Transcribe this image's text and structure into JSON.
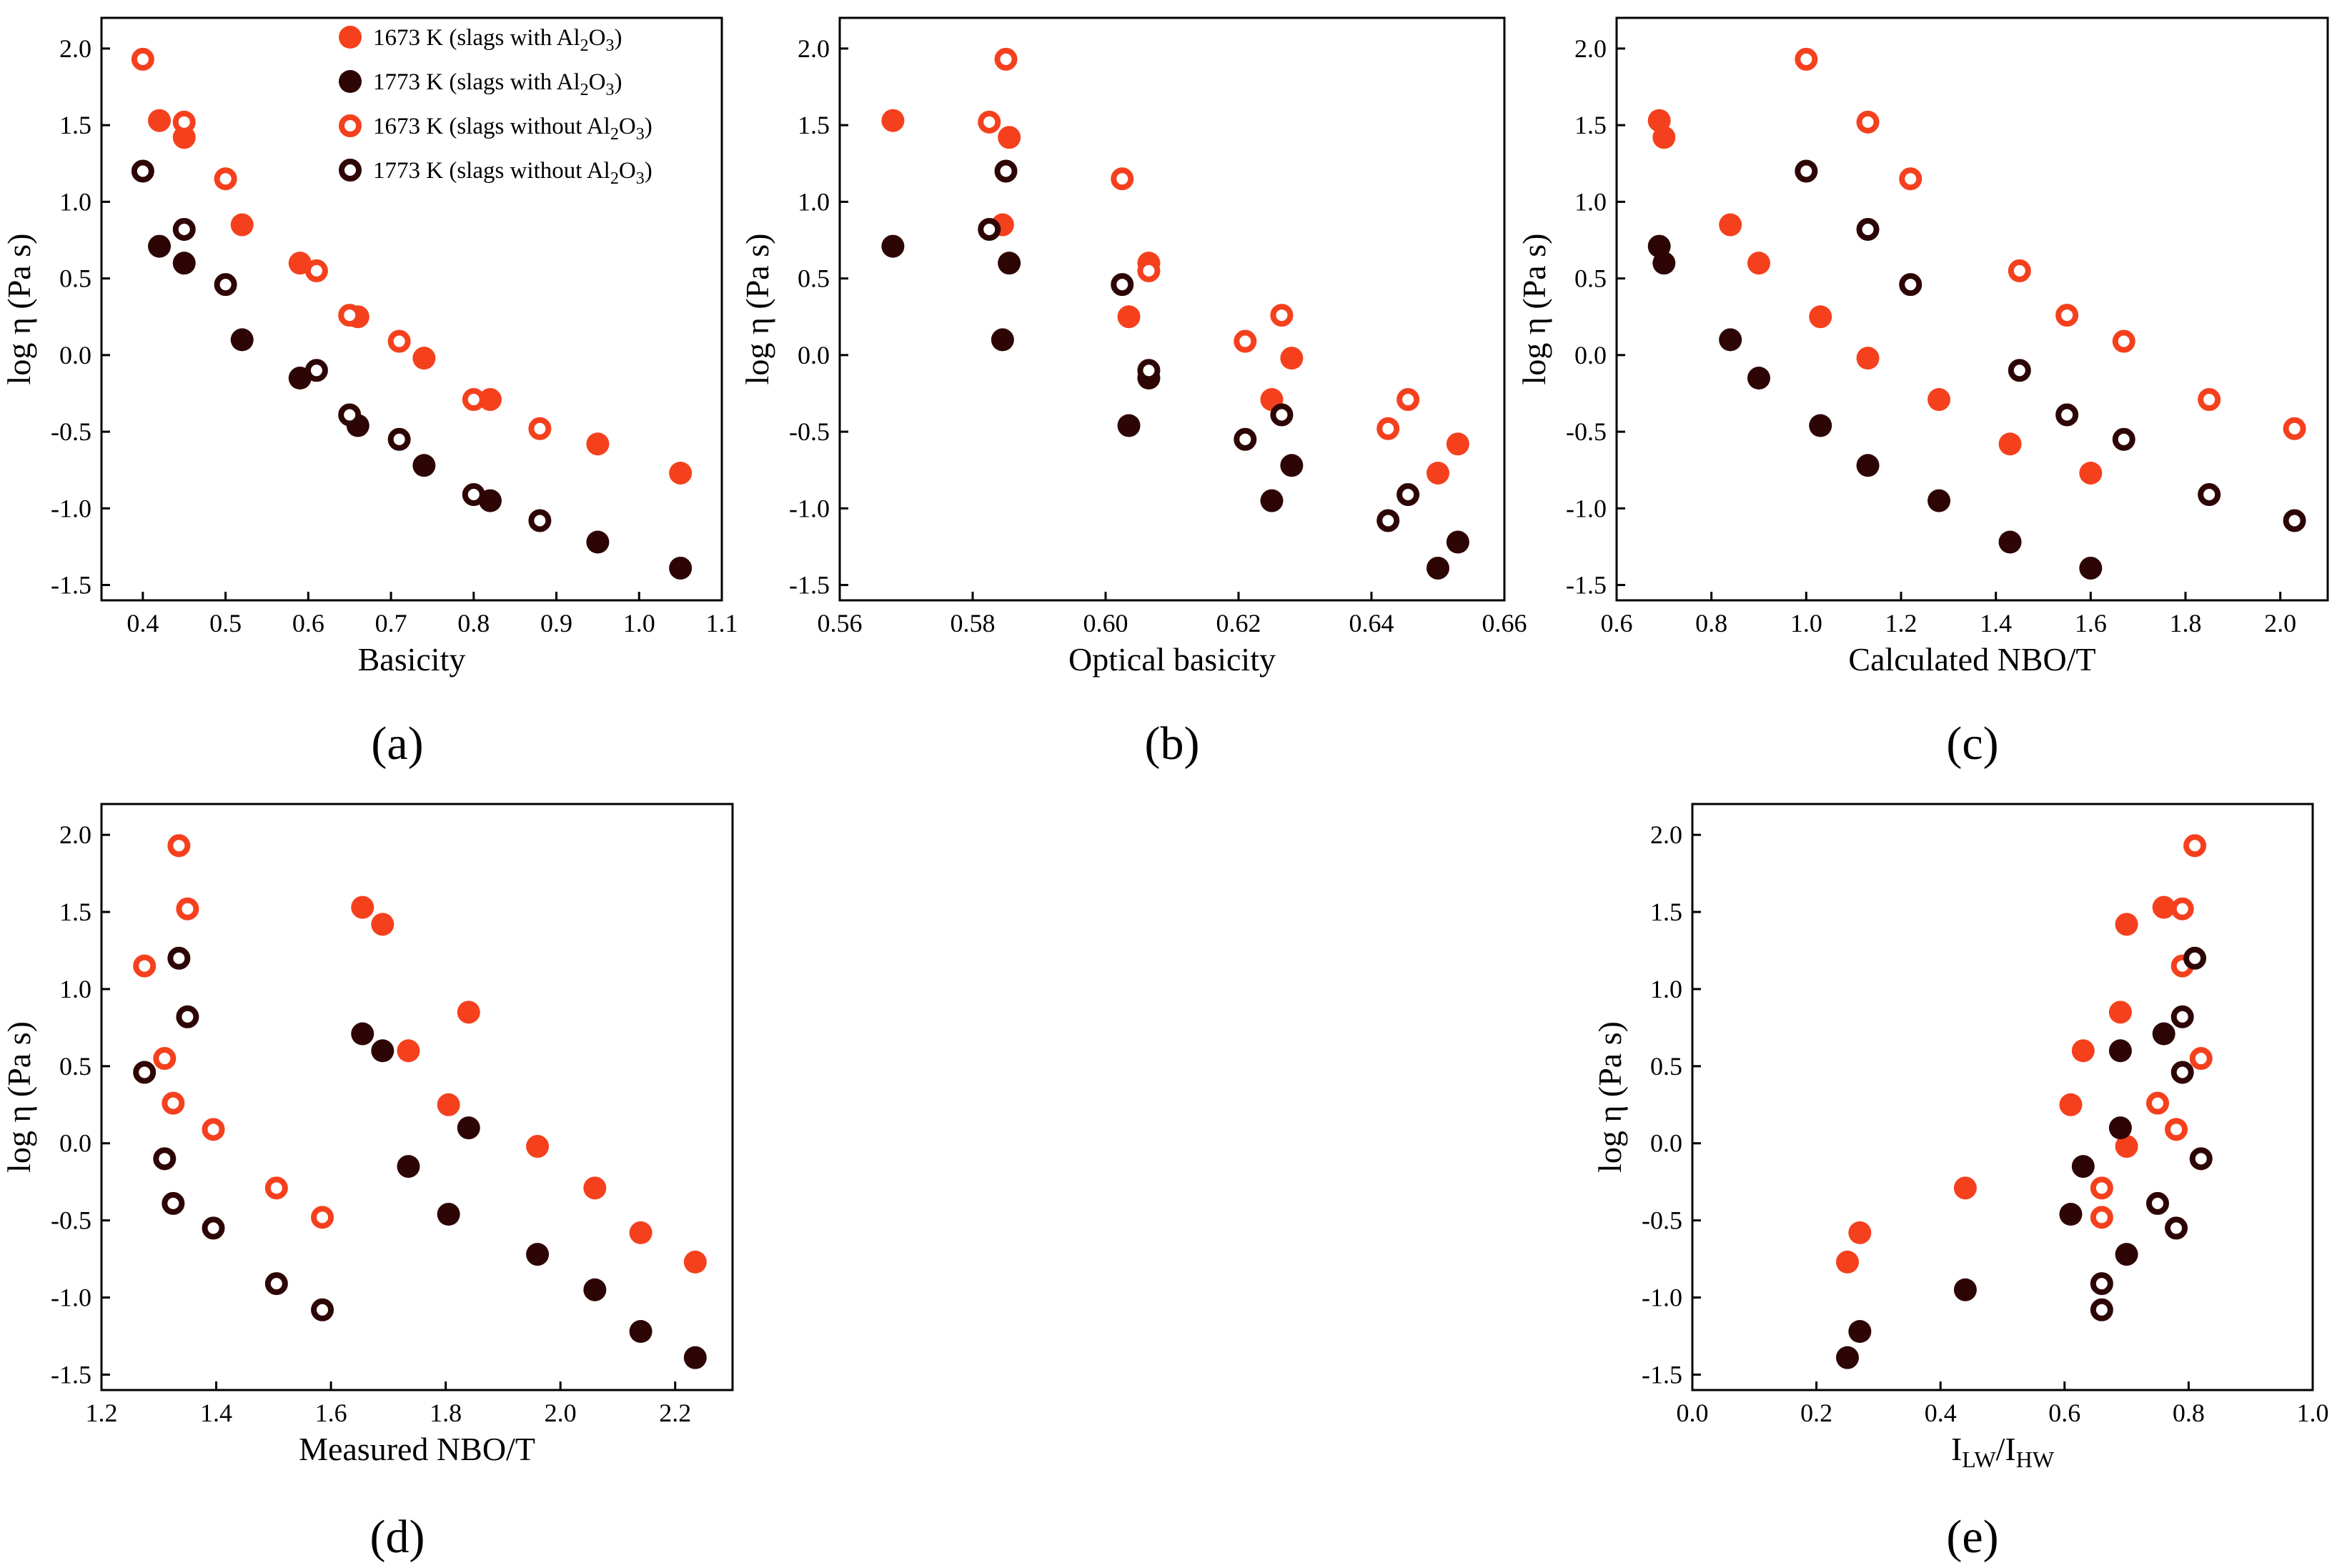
{
  "figure": {
    "legend": [
      {
        "prefix": "1673 K (slags with Al",
        "sub": "2",
        "mid": "O",
        "sub2": "3",
        "suffix": ")",
        "series": "s1673_with",
        "color": "#f5401e",
        "filled": true
      },
      {
        "prefix": "1773 K (slags with Al",
        "sub": "2",
        "mid": "O",
        "sub2": "3",
        "suffix": ")",
        "series": "s1773_with",
        "color": "#2e0505",
        "filled": true
      },
      {
        "prefix": "1673 K (slags without Al",
        "sub": "2",
        "mid": "O",
        "sub2": "3",
        "suffix": ")",
        "series": "s1673_without",
        "color": "#f5401e",
        "filled": false
      },
      {
        "prefix": "1773 K (slags without Al",
        "sub": "2",
        "mid": "O",
        "sub2": "3",
        "suffix": ")",
        "series": "s1773_without",
        "color": "#2e0505",
        "filled": false
      }
    ],
    "colors": {
      "red": "#f5401e",
      "dark": "#2e0505"
    }
  },
  "chart_data": [
    {
      "id": "a",
      "type": "scatter",
      "panel_label": "(a)",
      "xlabel": "Basicity",
      "ylabel": "log η (Pa s)",
      "xlim": [
        0.35,
        1.1
      ],
      "ylim": [
        -1.6,
        2.2
      ],
      "xticks": [
        "0.4",
        "0.5",
        "0.6",
        "0.7",
        "0.8",
        "0.9",
        "1.0",
        "1.1"
      ],
      "yticks": [
        "-1.5",
        "-1.0",
        "-0.5",
        "0.0",
        "0.5",
        "1.0",
        "1.5",
        "2.0"
      ],
      "series": [
        {
          "name": "1673 K (slags with Al2O3)",
          "key": "s1673_with",
          "x": [
            0.42,
            0.45,
            0.52,
            0.59,
            0.66,
            0.74,
            0.82,
            0.95,
            1.05
          ],
          "y": [
            1.53,
            1.42,
            0.85,
            0.6,
            0.25,
            -0.02,
            -0.29,
            -0.58,
            -0.77
          ]
        },
        {
          "name": "1773 K (slags with Al2O3)",
          "key": "s1773_with",
          "x": [
            0.42,
            0.45,
            0.52,
            0.59,
            0.66,
            0.74,
            0.82,
            0.95,
            1.05
          ],
          "y": [
            0.71,
            0.6,
            0.1,
            -0.15,
            -0.46,
            -0.72,
            -0.95,
            -1.22,
            -1.39
          ]
        },
        {
          "name": "1673 K (slags without Al2O3)",
          "key": "s1673_without",
          "x": [
            0.4,
            0.45,
            0.5,
            0.61,
            0.65,
            0.71,
            0.8,
            0.88
          ],
          "y": [
            1.93,
            1.52,
            1.15,
            0.55,
            0.26,
            0.09,
            -0.29,
            -0.48
          ]
        },
        {
          "name": "1773 K (slags without Al2O3)",
          "key": "s1773_without",
          "x": [
            0.4,
            0.45,
            0.5,
            0.61,
            0.65,
            0.71,
            0.8,
            0.88
          ],
          "y": [
            1.2,
            0.82,
            0.46,
            -0.1,
            -0.39,
            -0.55,
            -0.91,
            -1.08
          ]
        }
      ]
    },
    {
      "id": "b",
      "type": "scatter",
      "panel_label": "(b)",
      "xlabel": "Optical basicity",
      "ylabel": "log η (Pa s)",
      "xlim": [
        0.56,
        0.66
      ],
      "ylim": [
        -1.6,
        2.2
      ],
      "xticks": [
        "0.56",
        "0.58",
        "0.60",
        "0.62",
        "0.64",
        "0.66"
      ],
      "yticks": [
        "-1.5",
        "-1.0",
        "-0.5",
        "0.0",
        "0.5",
        "1.0",
        "1.5",
        "2.0"
      ],
      "series": [
        {
          "name": "1673 K (slags with Al2O3)",
          "key": "s1673_with",
          "x": [
            0.568,
            0.5855,
            0.5845,
            0.6065,
            0.6035,
            0.628,
            0.625,
            0.653,
            0.65
          ],
          "y": [
            1.53,
            1.42,
            0.85,
            0.6,
            0.25,
            -0.02,
            -0.29,
            -0.58,
            -0.77
          ]
        },
        {
          "name": "1773 K (slags with Al2O3)",
          "key": "s1773_with",
          "x": [
            0.568,
            0.5855,
            0.5845,
            0.6065,
            0.6035,
            0.628,
            0.625,
            0.653,
            0.65
          ],
          "y": [
            0.71,
            0.6,
            0.1,
            -0.15,
            -0.46,
            -0.72,
            -0.95,
            -1.22,
            -1.39
          ]
        },
        {
          "name": "1673 K (slags without Al2O3)",
          "key": "s1673_without",
          "x": [
            0.585,
            0.5825,
            0.6025,
            0.6065,
            0.6265,
            0.621,
            0.6425,
            0.6455
          ],
          "y": [
            1.93,
            1.52,
            1.15,
            0.55,
            0.26,
            0.09,
            -0.48,
            -0.29
          ]
        },
        {
          "name": "1773 K (slags without Al2O3)",
          "key": "s1773_without",
          "x": [
            0.585,
            0.5825,
            0.6025,
            0.6065,
            0.6265,
            0.621,
            0.6425,
            0.6455
          ],
          "y": [
            1.2,
            0.82,
            0.46,
            -0.1,
            -0.39,
            -0.55,
            -1.08,
            -0.91
          ]
        }
      ]
    },
    {
      "id": "c",
      "type": "scatter",
      "panel_label": "(c)",
      "xlabel": "Calculated NBO/T",
      "ylabel": "log η (Pa s)",
      "xlim": [
        0.6,
        2.1
      ],
      "ylim": [
        -1.6,
        2.2
      ],
      "xticks": [
        "0.6",
        "0.8",
        "1.0",
        "1.2",
        "1.4",
        "1.6",
        "1.8",
        "2.0"
      ],
      "yticks": [
        "-1.5",
        "-1.0",
        "-0.5",
        "0.0",
        "0.5",
        "1.0",
        "1.5",
        "2.0"
      ],
      "series": [
        {
          "name": "1673 K (slags with Al2O3)",
          "key": "s1673_with",
          "x": [
            0.69,
            0.7,
            0.84,
            0.9,
            1.03,
            1.13,
            1.28,
            1.43,
            1.6
          ],
          "y": [
            1.53,
            1.42,
            0.85,
            0.6,
            0.25,
            -0.02,
            -0.29,
            -0.58,
            -0.77
          ]
        },
        {
          "name": "1773 K (slags with Al2O3)",
          "key": "s1773_with",
          "x": [
            0.69,
            0.7,
            0.84,
            0.9,
            1.03,
            1.13,
            1.28,
            1.43,
            1.6
          ],
          "y": [
            0.71,
            0.6,
            0.1,
            -0.15,
            -0.46,
            -0.72,
            -0.95,
            -1.22,
            -1.39
          ]
        },
        {
          "name": "1673 K (slags without Al2O3)",
          "key": "s1673_without",
          "x": [
            1.0,
            1.13,
            1.22,
            1.45,
            1.55,
            1.67,
            1.85,
            2.03
          ],
          "y": [
            1.93,
            1.52,
            1.15,
            0.55,
            0.26,
            0.09,
            -0.29,
            -0.48
          ]
        },
        {
          "name": "1773 K (slags without Al2O3)",
          "key": "s1773_without",
          "x": [
            1.0,
            1.13,
            1.22,
            1.45,
            1.55,
            1.67,
            1.85,
            2.03
          ],
          "y": [
            1.2,
            0.82,
            0.46,
            -0.1,
            -0.39,
            -0.55,
            -0.91,
            -1.08
          ]
        }
      ]
    },
    {
      "id": "d",
      "type": "scatter",
      "panel_label": "(d)",
      "xlabel": "Measured NBO/T",
      "ylabel": "log η (Pa s)",
      "xlim": [
        1.2,
        2.3
      ],
      "ylim": [
        -1.6,
        2.2
      ],
      "xticks": [
        "1.2",
        "1.4",
        "1.6",
        "1.8",
        "2.0",
        "2.2"
      ],
      "yticks": [
        "-1.5",
        "-1.0",
        "-0.5",
        "0.0",
        "0.5",
        "1.0",
        "1.5",
        "2.0"
      ],
      "series": [
        {
          "name": "1673 K (slags with Al2O3)",
          "key": "s1673_with",
          "x": [
            1.655,
            1.69,
            1.84,
            1.735,
            1.805,
            1.96,
            2.06,
            2.14,
            2.235
          ],
          "y": [
            1.53,
            1.42,
            0.85,
            0.6,
            0.25,
            -0.02,
            -0.29,
            -0.58,
            -0.77
          ]
        },
        {
          "name": "1773 K (slags with Al2O3)",
          "key": "s1773_with",
          "x": [
            1.655,
            1.69,
            1.84,
            1.735,
            1.805,
            1.96,
            2.06,
            2.14,
            2.235
          ],
          "y": [
            0.71,
            0.6,
            0.1,
            -0.15,
            -0.46,
            -0.72,
            -0.95,
            -1.22,
            -1.39
          ]
        },
        {
          "name": "1673 K (slags without Al2O3)",
          "key": "s1673_without",
          "x": [
            1.335,
            1.35,
            1.275,
            1.31,
            1.325,
            1.395,
            1.505,
            1.585
          ],
          "y": [
            1.93,
            1.52,
            1.15,
            0.55,
            0.26,
            0.09,
            -0.29,
            -0.48
          ]
        },
        {
          "name": "1773 K (slags without Al2O3)",
          "key": "s1773_without",
          "x": [
            1.335,
            1.35,
            1.275,
            1.31,
            1.325,
            1.395,
            1.505,
            1.585
          ],
          "y": [
            1.2,
            0.82,
            0.46,
            -0.1,
            -0.39,
            -0.55,
            -0.91,
            -1.08
          ]
        }
      ]
    },
    {
      "id": "e",
      "type": "scatter",
      "panel_label": "(e)",
      "xlabel_main": "I",
      "xlabel_sub1": "LW",
      "xlabel_mid": "/I",
      "xlabel_sub2": "HW",
      "ylabel": "log η (Pa s)",
      "xlim": [
        0.0,
        1.0
      ],
      "ylim": [
        -1.6,
        2.2
      ],
      "xticks": [
        "0.0",
        "0.2",
        "0.4",
        "0.6",
        "0.8",
        "1.0"
      ],
      "yticks": [
        "-1.5",
        "-1.0",
        "-0.5",
        "0.0",
        "0.5",
        "1.0",
        "1.5",
        "2.0"
      ],
      "series": [
        {
          "name": "1673 K (slags with Al2O3)",
          "key": "s1673_with",
          "x": [
            0.76,
            0.7,
            0.69,
            0.63,
            0.61,
            0.7,
            0.44,
            0.27,
            0.25
          ],
          "y": [
            1.53,
            1.42,
            0.85,
            0.6,
            0.25,
            -0.02,
            -0.29,
            -0.58,
            -0.77
          ]
        },
        {
          "name": "1773 K (slags with Al2O3)",
          "key": "s1773_with",
          "x": [
            0.76,
            0.69,
            0.69,
            0.63,
            0.61,
            0.7,
            0.44,
            0.27,
            0.25
          ],
          "y": [
            0.71,
            0.6,
            0.1,
            -0.15,
            -0.46,
            -0.72,
            -0.95,
            -1.22,
            -1.39
          ]
        },
        {
          "name": "1673 K (slags without Al2O3)",
          "key": "s1673_without",
          "x": [
            0.81,
            0.79,
            0.79,
            0.82,
            0.75,
            0.78,
            0.66,
            0.66
          ],
          "y": [
            1.93,
            1.52,
            1.15,
            0.55,
            0.26,
            0.09,
            -0.29,
            -0.48
          ]
        },
        {
          "name": "1773 K (slags without Al2O3)",
          "key": "s1773_without",
          "x": [
            0.81,
            0.79,
            0.79,
            0.82,
            0.75,
            0.78,
            0.66,
            0.66
          ],
          "y": [
            1.2,
            0.82,
            0.46,
            -0.1,
            -0.39,
            -0.55,
            -0.91,
            -1.08
          ]
        }
      ]
    }
  ]
}
